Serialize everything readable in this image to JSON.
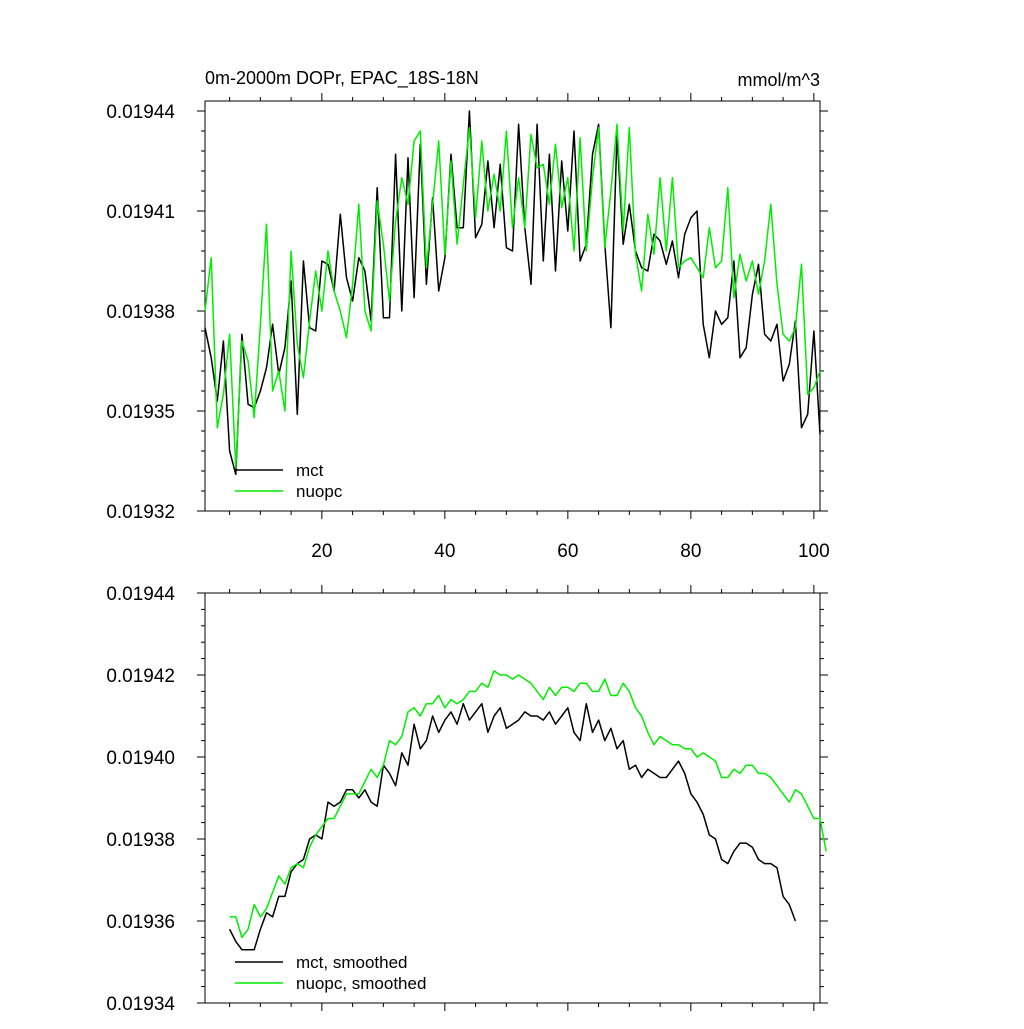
{
  "chart_data": [
    {
      "type": "line",
      "title": "0m-2000m DOPr, EPAC_18S-18N",
      "units": "mmol/m^3",
      "xlabel": "",
      "ylabel": "",
      "xlim": [
        1,
        101
      ],
      "ylim": [
        0.01932,
        0.019443
      ],
      "yticks": [
        0.01932,
        0.01935,
        0.01938,
        0.01941,
        0.01944
      ],
      "ytick_labels": [
        "0.01932",
        "0.01935",
        "0.01938",
        "0.01941",
        "0.01944"
      ],
      "xticks": [
        20,
        40,
        60,
        80,
        100
      ],
      "xtick_labels": [
        "20",
        "40",
        "60",
        "80",
        "100"
      ],
      "legend_position": "bottom-left",
      "series": [
        {
          "name": "mct",
          "color": "#000000",
          "values": [
            0.019375,
            0.019366,
            0.019353,
            0.019371,
            0.019338,
            0.019331,
            0.019373,
            0.019352,
            0.019351,
            0.019356,
            0.019363,
            0.019376,
            0.019361,
            0.019369,
            0.019389,
            0.019349,
            0.019395,
            0.019375,
            0.019374,
            0.019395,
            0.019394,
            0.019386,
            0.019409,
            0.01939,
            0.019383,
            0.019396,
            0.019392,
            0.019377,
            0.019417,
            0.019378,
            0.019378,
            0.019427,
            0.01938,
            0.019426,
            0.019384,
            0.01943,
            0.019388,
            0.019414,
            0.019386,
            0.019396,
            0.019427,
            0.019405,
            0.019405,
            0.01944,
            0.019402,
            0.019406,
            0.019425,
            0.019405,
            0.019424,
            0.019399,
            0.019398,
            0.019436,
            0.019405,
            0.019388,
            0.019436,
            0.019395,
            0.019427,
            0.019392,
            0.019425,
            0.019404,
            0.019434,
            0.019395,
            0.0194,
            0.019427,
            0.019436,
            0.0194,
            0.019375,
            0.019433,
            0.0194,
            0.019412,
            0.019398,
            0.019393,
            0.019392,
            0.019403,
            0.019401,
            0.019394,
            0.019401,
            0.01939,
            0.019403,
            0.019408,
            0.01941,
            0.019376,
            0.019366,
            0.01938,
            0.019376,
            0.019378,
            0.019395,
            0.019366,
            0.019369,
            0.019385,
            0.019394,
            0.019373,
            0.019371,
            0.019376,
            0.019359,
            0.019364,
            0.019377,
            0.019345,
            0.019349,
            0.019374,
            0.019343
          ]
        },
        {
          "name": "nuopc",
          "color": "#00ee00",
          "values": [
            0.01938,
            0.019396,
            0.019345,
            0.019355,
            0.019373,
            0.019333,
            0.019371,
            0.019365,
            0.019348,
            0.019376,
            0.019406,
            0.019356,
            0.019362,
            0.01935,
            0.019398,
            0.01937,
            0.01936,
            0.019377,
            0.019392,
            0.01938,
            0.019398,
            0.019386,
            0.01938,
            0.019372,
            0.019388,
            0.019412,
            0.01938,
            0.019374,
            0.019413,
            0.0194,
            0.019383,
            0.019407,
            0.01942,
            0.019412,
            0.019431,
            0.019434,
            0.019393,
            0.019412,
            0.019431,
            0.019397,
            0.019425,
            0.0194,
            0.019418,
            0.019435,
            0.019408,
            0.019431,
            0.01941,
            0.019421,
            0.01941,
            0.019434,
            0.019405,
            0.01942,
            0.019405,
            0.019433,
            0.019423,
            0.019424,
            0.019412,
            0.01943,
            0.019411,
            0.01942,
            0.019398,
            0.019432,
            0.019398,
            0.01942,
            0.019435,
            0.019399,
            0.019416,
            0.019436,
            0.019404,
            0.019435,
            0.019397,
            0.019386,
            0.019409,
            0.019397,
            0.01942,
            0.019398,
            0.01942,
            0.019393,
            0.019395,
            0.019396,
            0.019393,
            0.01939,
            0.019405,
            0.019393,
            0.019395,
            0.019417,
            0.019384,
            0.019397,
            0.019389,
            0.019395,
            0.019385,
            0.019395,
            0.019412,
            0.019388,
            0.019373,
            0.019371,
            0.019375,
            0.019394,
            0.019355,
            0.019357,
            0.019362
          ]
        }
      ]
    },
    {
      "type": "line",
      "title": "",
      "xlabel": "",
      "ylabel": "",
      "xlim": [
        1,
        101
      ],
      "ylim": [
        0.01934,
        0.01944
      ],
      "yticks": [
        0.01934,
        0.01936,
        0.01938,
        0.0194,
        0.01942,
        0.01944
      ],
      "ytick_labels": [
        "0.01934",
        "0.01936",
        "0.01938",
        "0.01940",
        "0.01942",
        "0.01944"
      ],
      "xticks": [
        20,
        40,
        60,
        80,
        100
      ],
      "legend_position": "bottom-left",
      "x_start": 5,
      "series": [
        {
          "name": "mct, smoothed",
          "color": "#000000",
          "values": [
            0.019358,
            0.019355,
            0.019353,
            0.019353,
            0.019353,
            0.019358,
            0.019362,
            0.019361,
            0.019366,
            0.019366,
            0.019372,
            0.019374,
            0.019375,
            0.01938,
            0.019381,
            0.01938,
            0.019389,
            0.019388,
            0.019389,
            0.019392,
            0.019392,
            0.01939,
            0.019392,
            0.019389,
            0.019388,
            0.019398,
            0.019396,
            0.019393,
            0.019401,
            0.019398,
            0.019408,
            0.019402,
            0.019404,
            0.01941,
            0.019406,
            0.019409,
            0.019411,
            0.019408,
            0.019413,
            0.019409,
            0.019411,
            0.019413,
            0.019406,
            0.01941,
            0.019412,
            0.019407,
            0.019408,
            0.019409,
            0.019411,
            0.01941,
            0.01941,
            0.019409,
            0.019411,
            0.019408,
            0.01941,
            0.019412,
            0.019406,
            0.019404,
            0.019413,
            0.019406,
            0.019409,
            0.019404,
            0.019407,
            0.019402,
            0.019404,
            0.019397,
            0.019398,
            0.019395,
            0.019397,
            0.019396,
            0.019395,
            0.019395,
            0.019397,
            0.019399,
            0.019396,
            0.019391,
            0.019389,
            0.019386,
            0.019381,
            0.01938,
            0.019375,
            0.019374,
            0.019377,
            0.019379,
            0.019379,
            0.019378,
            0.019375,
            0.019374,
            0.019374,
            0.019373,
            0.019366,
            0.019364,
            0.01936
          ]
        },
        {
          "name": "nuopc, smoothed",
          "color": "#00ee00",
          "values": [
            0.019361,
            0.019361,
            0.019356,
            0.019358,
            0.019364,
            0.019361,
            0.019363,
            0.019367,
            0.019371,
            0.019369,
            0.019373,
            0.019374,
            0.019373,
            0.019378,
            0.019381,
            0.019383,
            0.019385,
            0.019385,
            0.019388,
            0.019391,
            0.019391,
            0.019391,
            0.019394,
            0.019397,
            0.019395,
            0.019398,
            0.019404,
            0.019403,
            0.019405,
            0.019411,
            0.019412,
            0.01941,
            0.019413,
            0.019413,
            0.019415,
            0.019412,
            0.019414,
            0.019413,
            0.019414,
            0.019416,
            0.019416,
            0.019418,
            0.019417,
            0.019421,
            0.01942,
            0.01942,
            0.019419,
            0.01942,
            0.019419,
            0.019418,
            0.019416,
            0.019414,
            0.019417,
            0.019415,
            0.019417,
            0.019417,
            0.019416,
            0.019418,
            0.019418,
            0.019416,
            0.019416,
            0.019419,
            0.019415,
            0.019415,
            0.019418,
            0.019416,
            0.019412,
            0.01941,
            0.019406,
            0.019403,
            0.019405,
            0.019404,
            0.019403,
            0.019403,
            0.019402,
            0.019402,
            0.0194,
            0.019401,
            0.0194,
            0.019399,
            0.019395,
            0.019395,
            0.019397,
            0.019396,
            0.019398,
            0.019398,
            0.019396,
            0.019396,
            0.019395,
            0.019393,
            0.019391,
            0.019389,
            0.019392,
            0.019391,
            0.019388,
            0.019385,
            0.019385,
            0.019377
          ]
        }
      ]
    }
  ]
}
